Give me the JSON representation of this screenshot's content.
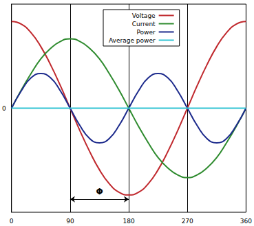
{
  "chart_data": {
    "type": "line",
    "x": [
      0,
      15,
      30,
      45,
      60,
      75,
      90,
      105,
      120,
      135,
      150,
      165,
      180,
      195,
      210,
      225,
      240,
      255,
      270,
      285,
      300,
      315,
      330,
      345,
      360
    ],
    "series": [
      {
        "name": "Voltage",
        "color": "#c0282d",
        "values": [
          1,
          0.97,
          0.87,
          0.71,
          0.5,
          0.26,
          0,
          -0.26,
          -0.5,
          -0.71,
          -0.87,
          -0.97,
          -1,
          -0.97,
          -0.87,
          -0.71,
          -0.5,
          -0.26,
          0,
          0.26,
          0.5,
          0.71,
          0.87,
          0.97,
          1
        ]
      },
      {
        "name": "Current",
        "color": "#2e8b2e",
        "values": [
          0,
          0.21,
          0.4,
          0.57,
          0.69,
          0.77,
          0.8,
          0.77,
          0.69,
          0.57,
          0.4,
          0.21,
          0,
          -0.21,
          -0.4,
          -0.57,
          -0.69,
          -0.77,
          -0.8,
          -0.77,
          -0.69,
          -0.57,
          -0.4,
          -0.21,
          0
        ]
      },
      {
        "name": "Power",
        "color": "#1c2a8c",
        "values": [
          0,
          0.2,
          0.35,
          0.4,
          0.35,
          0.2,
          0,
          -0.2,
          -0.35,
          -0.4,
          -0.35,
          -0.2,
          0,
          0.2,
          0.35,
          0.4,
          0.35,
          0.2,
          0,
          -0.2,
          -0.35,
          -0.4,
          -0.35,
          -0.2,
          0
        ]
      },
      {
        "name": "Average power",
        "color": "#33c4d4",
        "values": [
          0,
          0,
          0,
          0,
          0,
          0,
          0,
          0,
          0,
          0,
          0,
          0,
          0,
          0,
          0,
          0,
          0,
          0,
          0,
          0,
          0,
          0,
          0,
          0,
          0
        ]
      }
    ],
    "xlim": [
      0,
      360
    ],
    "xticks": [
      0,
      90,
      180,
      270,
      360
    ],
    "ylim": [
      -1.2,
      1.2
    ],
    "yticks": [
      0
    ],
    "grid": true,
    "legend": "upper right",
    "annotations": [
      {
        "text": "Φ",
        "x": [
          90,
          180
        ],
        "y": -1.05
      }
    ]
  }
}
